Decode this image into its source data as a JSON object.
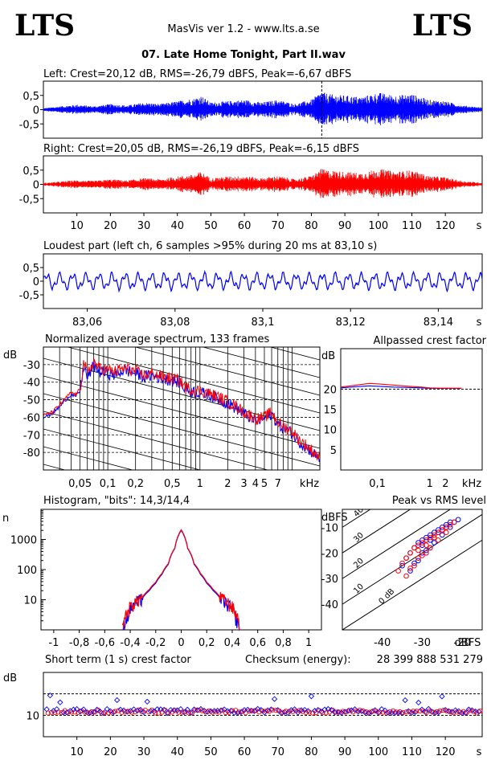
{
  "header": {
    "logo_left": "LTS",
    "logo_right": "LTS",
    "app_title": "MasVis ver 1.2 - www.lts.a.se",
    "file_name": "07. Late Home Tonight, Part II.wav"
  },
  "colors": {
    "left": "#0000ff",
    "right": "#ff0000"
  },
  "chart_data": [
    {
      "type": "line",
      "id": "waveform-left",
      "title": "Left: Crest=20,12 dB, RMS=-26,79 dBFS, Peak=-6,67 dBFS",
      "yticks": [
        "0,5",
        "0",
        "-0,5"
      ],
      "ylim": [
        -1,
        1
      ],
      "xlim": [
        0,
        131
      ],
      "marker_x": 83.1,
      "envelope_x": [
        0,
        5,
        10,
        15,
        20,
        25,
        30,
        35,
        40,
        45,
        47,
        50,
        55,
        60,
        65,
        70,
        75,
        80,
        83,
        85,
        90,
        95,
        100,
        105,
        110,
        115,
        120,
        125,
        131
      ],
      "envelope_y": [
        0.05,
        0.12,
        0.18,
        0.12,
        0.2,
        0.15,
        0.25,
        0.2,
        0.3,
        0.4,
        0.5,
        0.25,
        0.3,
        0.35,
        0.25,
        0.35,
        0.2,
        0.35,
        0.65,
        0.55,
        0.5,
        0.45,
        0.6,
        0.5,
        0.55,
        0.35,
        0.3,
        0.15,
        0.08
      ]
    },
    {
      "type": "line",
      "id": "waveform-right",
      "title": "Right: Crest=20,05 dB, RMS=-26,19 dBFS, Peak=-6,15 dBFS",
      "yticks": [
        "0,5",
        "0",
        "-0,5"
      ],
      "ylim": [
        -1,
        1
      ],
      "xlim": [
        0,
        131
      ],
      "xticks": [
        "10",
        "20",
        "30",
        "40",
        "50",
        "60",
        "70",
        "80",
        "90",
        "100",
        "110",
        "120"
      ],
      "xunit": "s",
      "envelope_x": [
        0,
        5,
        10,
        15,
        20,
        25,
        30,
        35,
        40,
        45,
        47,
        50,
        55,
        60,
        65,
        70,
        75,
        80,
        83,
        85,
        90,
        95,
        100,
        105,
        110,
        115,
        120,
        125,
        131
      ],
      "envelope_y": [
        0.05,
        0.1,
        0.15,
        0.12,
        0.18,
        0.14,
        0.22,
        0.18,
        0.28,
        0.35,
        0.45,
        0.22,
        0.28,
        0.3,
        0.22,
        0.3,
        0.18,
        0.3,
        0.55,
        0.5,
        0.45,
        0.4,
        0.55,
        0.45,
        0.5,
        0.3,
        0.25,
        0.12,
        0.06
      ]
    },
    {
      "type": "line",
      "id": "loudest-part",
      "title": "Loudest part (left  ch, 6 samples >95% during 20 ms at 83,10 s)",
      "yticks": [
        "0,5",
        "0",
        "-0,5"
      ],
      "ylim": [
        -1,
        1
      ],
      "xlim": [
        83.05,
        83.15
      ],
      "xticks": [
        "83,06",
        "83,08",
        "83,1",
        "83,12",
        "83,14"
      ],
      "xunit": "s"
    },
    {
      "type": "line",
      "id": "spectrum",
      "title": "Normalized average spectrum, 133 frames",
      "ylabel": "dB",
      "yticks": [
        "-30",
        "-40",
        "-50",
        "-60",
        "-70",
        "-80"
      ],
      "ylim": [
        -90,
        -20
      ],
      "xscale": "log",
      "xlim": [
        0.02,
        20
      ],
      "xticks": [
        "0,05",
        "0,1",
        "0,2",
        "0,5",
        "1",
        "2",
        "3",
        "4",
        "5",
        "7"
      ],
      "xunit": "kHz",
      "x": [
        0.02,
        0.025,
        0.03,
        0.035,
        0.04,
        0.045,
        0.05,
        0.055,
        0.06,
        0.07,
        0.08,
        0.1,
        0.12,
        0.15,
        0.2,
        0.25,
        0.3,
        0.4,
        0.5,
        0.6,
        0.7,
        0.8,
        1,
        1.2,
        1.5,
        2,
        2.5,
        3,
        3.5,
        4,
        5,
        6,
        7,
        8,
        10,
        12,
        15,
        20
      ],
      "series": [
        {
          "values": [
            -60,
            -58,
            -54,
            -50,
            -47,
            -48,
            -45,
            -30,
            -38,
            -30,
            -34,
            -35,
            -36,
            -33,
            -35,
            -37,
            -36,
            -38,
            -39,
            -40,
            -44,
            -45,
            -46,
            -47,
            -49,
            -52,
            -55,
            -58,
            -60,
            -62,
            -61,
            -58,
            -64,
            -66,
            -69,
            -74,
            -78,
            -84
          ]
        },
        {
          "values": [
            -59,
            -57,
            -53,
            -49,
            -46,
            -47,
            -44,
            -28,
            -36,
            -28,
            -32,
            -33,
            -34,
            -32,
            -34,
            -36,
            -35,
            -37,
            -38,
            -39,
            -43,
            -44,
            -45,
            -46,
            -48,
            -51,
            -54,
            -57,
            -59,
            -61,
            -60,
            -57,
            -63,
            -65,
            -68,
            -73,
            -77,
            -83
          ]
        }
      ]
    },
    {
      "type": "line",
      "id": "allpassed-crest",
      "title": "Allpassed crest factor",
      "ylabel": "dB",
      "yticks": [
        "20",
        "15",
        "10",
        "5"
      ],
      "ylim": [
        0,
        30
      ],
      "xscale": "log",
      "xticks": [
        "0,1",
        "1",
        "2"
      ],
      "xunit": "kHz",
      "x": [
        0.02,
        0.04,
        0.07,
        0.1,
        0.2,
        0.4,
        0.7,
        1,
        2,
        4
      ],
      "series": [
        {
          "values": [
            20.3,
            20.6,
            20.8,
            20.7,
            20.5,
            20.4,
            20.3,
            20.2,
            20.2,
            20.2
          ]
        },
        {
          "values": [
            20.5,
            21.0,
            21.4,
            21.3,
            21.0,
            20.7,
            20.5,
            20.3,
            20.2,
            20.2
          ]
        }
      ]
    },
    {
      "type": "line",
      "id": "histogram",
      "title": "Histogram, \"bits\": 14,3/14,4",
      "ylabel": "n",
      "yscale": "log",
      "yticks": [
        "1000",
        "100",
        "10"
      ],
      "ylim": [
        1,
        10000
      ],
      "xlim": [
        -1.1,
        1.1
      ],
      "xticks": [
        "-1",
        "-0,8",
        "-0,6",
        "-0,4",
        "-0,2",
        "0",
        "0,2",
        "0,4",
        "0,6",
        "0,8",
        "1"
      ],
      "x": [
        -0.46,
        -0.44,
        -0.42,
        -0.4,
        -0.35,
        -0.3,
        -0.25,
        -0.2,
        -0.15,
        -0.1,
        -0.05,
        0,
        0.05,
        0.1,
        0.15,
        0.2,
        0.25,
        0.3,
        0.35,
        0.4,
        0.42,
        0.44,
        0.46
      ],
      "series": [
        {
          "values": [
            1,
            2,
            3,
            5,
            8,
            12,
            20,
            35,
            70,
            150,
            500,
            2000,
            500,
            150,
            70,
            35,
            20,
            12,
            8,
            5,
            3,
            2,
            1
          ]
        },
        {
          "values": [
            1,
            3,
            4,
            6,
            9,
            13,
            22,
            38,
            75,
            160,
            520,
            2100,
            520,
            160,
            75,
            38,
            22,
            13,
            9,
            6,
            4,
            3,
            1
          ]
        }
      ]
    },
    {
      "type": "scatter",
      "id": "peak-vs-rms",
      "title": "Peak vs RMS level",
      "ylabel": "dBFS",
      "xlabel": "dBFS",
      "yticks": [
        "-10",
        "-20",
        "-30",
        "-40"
      ],
      "xticks": [
        "-40",
        "-30",
        "-20"
      ],
      "xlim": [
        -50,
        -15
      ],
      "ylim": [
        -50,
        -3
      ],
      "diagonal_labels": [
        "40",
        "30",
        "20",
        "10",
        "0 dB"
      ],
      "series": [
        {
          "x": [
            -35,
            -34,
            -33,
            -32,
            -31,
            -30,
            -29,
            -28,
            -27,
            -26,
            -25,
            -24,
            -23,
            -22,
            -21,
            -33,
            -31,
            -29,
            -27,
            -25,
            -23,
            -30,
            -28,
            -26,
            -24,
            -32,
            -30,
            -28
          ],
          "y": [
            -25,
            -22,
            -20,
            -18,
            -16,
            -15,
            -14,
            -13,
            -12,
            -11,
            -10,
            -9,
            -8,
            -8,
            -7,
            -27,
            -23,
            -19,
            -16,
            -13,
            -10,
            -17,
            -15,
            -12,
            -10,
            -24,
            -20,
            -18
          ]
        },
        {
          "x": [
            -36,
            -35,
            -34,
            -33,
            -32,
            -31,
            -30,
            -29,
            -28,
            -27,
            -26,
            -25,
            -24,
            -23,
            -22,
            -34,
            -32,
            -30,
            -28,
            -26,
            -24,
            -31,
            -29,
            -27,
            -25,
            -33,
            -31,
            -29
          ],
          "y": [
            -27,
            -24,
            -22,
            -20,
            -18,
            -17,
            -16,
            -15,
            -14,
            -13,
            -12,
            -11,
            -10,
            -9,
            -8,
            -29,
            -25,
            -21,
            -18,
            -15,
            -12,
            -19,
            -17,
            -14,
            -11,
            -26,
            -22,
            -20
          ]
        }
      ]
    },
    {
      "type": "scatter",
      "id": "short-term-crest",
      "title": "Short term (1 s) crest factor",
      "checksum_label": "Checksum (energy):",
      "checksum_value": "28 399 888 531 279",
      "ylabel": "dB",
      "yticks": [
        "10"
      ],
      "ylim": [
        0,
        30
      ],
      "xlim": [
        0,
        131
      ],
      "xticks": [
        "10",
        "20",
        "30",
        "40",
        "50",
        "60",
        "70",
        "80",
        "90",
        "100",
        "110",
        "120"
      ],
      "xunit": "s"
    }
  ]
}
